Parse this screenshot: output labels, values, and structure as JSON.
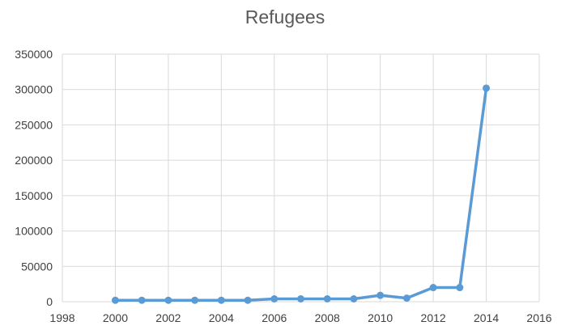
{
  "chart_data": {
    "type": "line",
    "title": "Refugees",
    "xlabel": "",
    "ylabel": "",
    "xlim": [
      1998,
      2016
    ],
    "ylim": [
      0,
      350000
    ],
    "x_ticks": [
      1998,
      2000,
      2002,
      2004,
      2006,
      2008,
      2010,
      2012,
      2014,
      2016
    ],
    "y_ticks": [
      0,
      50000,
      100000,
      150000,
      200000,
      250000,
      300000,
      350000
    ],
    "grid": true,
    "legend": "none",
    "series": [
      {
        "color": "#5b9bd5",
        "points": [
          {
            "x": 2000,
            "y": 2000
          },
          {
            "x": 2001,
            "y": 2000
          },
          {
            "x": 2002,
            "y": 2000
          },
          {
            "x": 2003,
            "y": 2000
          },
          {
            "x": 2004,
            "y": 2000
          },
          {
            "x": 2005,
            "y": 2000
          },
          {
            "x": 2006,
            "y": 4000
          },
          {
            "x": 2007,
            "y": 4000
          },
          {
            "x": 2008,
            "y": 4000
          },
          {
            "x": 2009,
            "y": 4000
          },
          {
            "x": 2010,
            "y": 9000
          },
          {
            "x": 2011,
            "y": 5000
          },
          {
            "x": 2012,
            "y": 20000
          },
          {
            "x": 2013,
            "y": 20000
          },
          {
            "x": 2014,
            "y": 302000
          }
        ]
      }
    ]
  }
}
